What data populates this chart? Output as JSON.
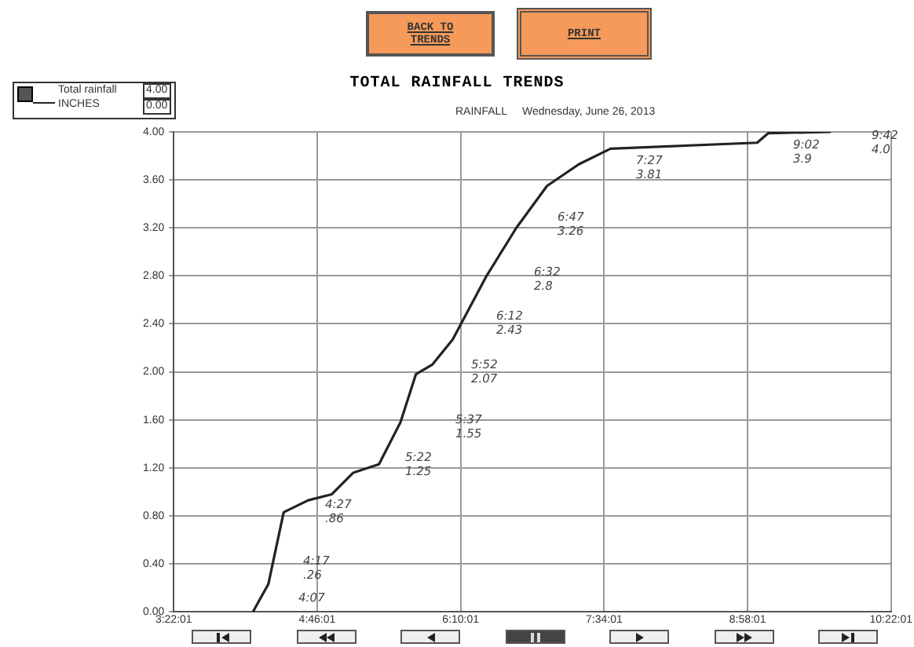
{
  "chart_data": {
    "type": "line",
    "title": "TOTAL RAINFALL TRENDS",
    "subtitle": "RAINFALL     Wednesday, June 26, 2013",
    "ylabel": "INCHES",
    "series": [
      {
        "name": "Total rainfall",
        "color": "#222222",
        "x": [
          4.14,
          4.29,
          4.44,
          4.68,
          4.91,
          5.12,
          5.37,
          5.58,
          5.73,
          5.89,
          6.09,
          6.42,
          6.71,
          7.01,
          7.32,
          7.63,
          9.06,
          9.17,
          9.78
        ],
        "values": [
          0,
          0.23,
          0.83,
          0.93,
          0.98,
          1.16,
          1.23,
          1.58,
          1.98,
          2.06,
          2.27,
          2.8,
          3.2,
          3.55,
          3.73,
          3.86,
          3.91,
          3.99,
          4.0
        ]
      }
    ],
    "xlim": [
      3.367,
      10.367
    ],
    "xticks": [
      {
        "value": 3.367,
        "label": "3:22:01"
      },
      {
        "value": 4.767,
        "label": "4:46:01"
      },
      {
        "value": 6.167,
        "label": "6:10:01"
      },
      {
        "value": 7.567,
        "label": "7:34:01"
      },
      {
        "value": 8.967,
        "label": "8:58:01"
      },
      {
        "value": 10.367,
        "label": "10:22:01"
      }
    ],
    "ylim": [
      0,
      4
    ],
    "yticks": [
      {
        "value": 0,
        "label": "0.00"
      },
      {
        "value": 0.4,
        "label": "0.40"
      },
      {
        "value": 0.8,
        "label": "0.80"
      },
      {
        "value": 1.2,
        "label": "1.20"
      },
      {
        "value": 1.6,
        "label": "1.60"
      },
      {
        "value": 2,
        "label": "2.00"
      },
      {
        "value": 2.4,
        "label": "2.40"
      },
      {
        "value": 2.8,
        "label": "2.80"
      },
      {
        "value": 3.2,
        "label": "3.20"
      },
      {
        "value": 3.6,
        "label": "3.60"
      },
      {
        "value": 4,
        "label": "4.00"
      }
    ],
    "grid": true,
    "legend": "top left",
    "marker": "none",
    "line_style": "solid",
    "annotations": [
      "BACK TO TRENDS",
      "PRINT",
      "4.00",
      "0.00",
      "4:07",
      "4:17\n.26",
      "4:27\n.86",
      "5:22\n1.25",
      "5:37\n1.55",
      "5:52\n2.07",
      "6:12\n2.43",
      "6:32\n2.8",
      "6:47\n3.26",
      "7:27\n3.81",
      "9:02\n3.9",
      "9:42\n4.0"
    ]
  }
}
